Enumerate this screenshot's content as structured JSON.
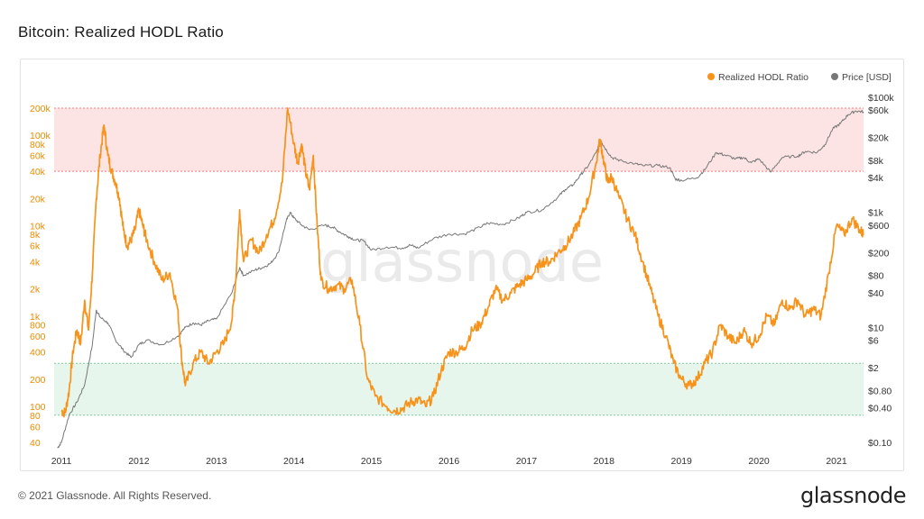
{
  "page": {
    "title": "Bitcoin: Realized HODL Ratio",
    "copyright": "© 2021 Glassnode. All Rights Reserved.",
    "logo_text": "glassnode",
    "watermark": "glassnode"
  },
  "colors": {
    "ratio": "#f7931a",
    "price": "#777777",
    "upper_band": "#fde4e4",
    "lower_band": "#e6f6ec",
    "left_axis_text": "#f08a00",
    "right_axis_text": "#333333"
  },
  "chart_data": {
    "type": "line",
    "title": "Bitcoin: Realized HODL Ratio",
    "legend_position": "top-right",
    "grid": false,
    "x_ticks": [
      "2011",
      "2012",
      "2013",
      "2014",
      "2015",
      "2016",
      "2017",
      "2018",
      "2019",
      "2020",
      "2021"
    ],
    "y_left": {
      "scale": "log",
      "range": [
        40,
        200000
      ],
      "ticks": [
        {
          "v": 40,
          "label": "40"
        },
        {
          "v": 60,
          "label": "60"
        },
        {
          "v": 80,
          "label": "80"
        },
        {
          "v": 100,
          "label": "100"
        },
        {
          "v": 200,
          "label": "200"
        },
        {
          "v": 400,
          "label": "400"
        },
        {
          "v": 600,
          "label": "600"
        },
        {
          "v": 800,
          "label": "800"
        },
        {
          "v": 1000,
          "label": "1k"
        },
        {
          "v": 2000,
          "label": "2k"
        },
        {
          "v": 4000,
          "label": "4k"
        },
        {
          "v": 6000,
          "label": "6k"
        },
        {
          "v": 8000,
          "label": "8k"
        },
        {
          "v": 10000,
          "label": "10k"
        },
        {
          "v": 20000,
          "label": "20k"
        },
        {
          "v": 40000,
          "label": "40k"
        },
        {
          "v": 60000,
          "label": "60k"
        },
        {
          "v": 80000,
          "label": "80k"
        },
        {
          "v": 100000,
          "label": "100k"
        },
        {
          "v": 200000,
          "label": "200k"
        }
      ]
    },
    "y_right": {
      "scale": "log",
      "range": [
        0.1,
        100000
      ],
      "ticks": [
        {
          "v": 0.1,
          "label": "$0.10"
        },
        {
          "v": 0.4,
          "label": "$0.40"
        },
        {
          "v": 0.8,
          "label": "$0.80"
        },
        {
          "v": 2,
          "label": "$2"
        },
        {
          "v": 6,
          "label": "$6"
        },
        {
          "v": 10,
          "label": "$10"
        },
        {
          "v": 40,
          "label": "$40"
        },
        {
          "v": 80,
          "label": "$80"
        },
        {
          "v": 200,
          "label": "$200"
        },
        {
          "v": 600,
          "label": "$600"
        },
        {
          "v": 1000,
          "label": "$1k"
        },
        {
          "v": 4000,
          "label": "$4k"
        },
        {
          "v": 8000,
          "label": "$8k"
        },
        {
          "v": 20000,
          "label": "$20k"
        },
        {
          "v": 60000,
          "label": "$60k"
        },
        {
          "v": 100000,
          "label": "$100k"
        }
      ]
    },
    "bands": [
      {
        "name": "upper",
        "from": 40000,
        "to": 200000
      },
      {
        "name": "lower",
        "from": 80,
        "to": 300
      }
    ],
    "series": [
      {
        "name": "Realized HODL Ratio",
        "axis": "left",
        "points": [
          [
            2011.0,
            90
          ],
          [
            2011.05,
            85
          ],
          [
            2011.1,
            150
          ],
          [
            2011.15,
            400
          ],
          [
            2011.2,
            700
          ],
          [
            2011.25,
            500
          ],
          [
            2011.3,
            1500
          ],
          [
            2011.35,
            700
          ],
          [
            2011.4,
            3000
          ],
          [
            2011.45,
            20000
          ],
          [
            2011.5,
            60000
          ],
          [
            2011.55,
            130000
          ],
          [
            2011.6,
            60000
          ],
          [
            2011.65,
            40000
          ],
          [
            2011.7,
            30000
          ],
          [
            2011.75,
            20000
          ],
          [
            2011.8,
            9000
          ],
          [
            2011.85,
            6000
          ],
          [
            2011.9,
            7000
          ],
          [
            2011.95,
            9000
          ],
          [
            2012.0,
            15000
          ],
          [
            2012.05,
            10000
          ],
          [
            2012.1,
            7000
          ],
          [
            2012.2,
            4000
          ],
          [
            2012.3,
            2500
          ],
          [
            2012.4,
            3000
          ],
          [
            2012.5,
            1200
          ],
          [
            2012.55,
            350
          ],
          [
            2012.6,
            170
          ],
          [
            2012.7,
            300
          ],
          [
            2012.8,
            400
          ],
          [
            2012.9,
            300
          ],
          [
            2013.0,
            400
          ],
          [
            2013.1,
            500
          ],
          [
            2013.2,
            900
          ],
          [
            2013.25,
            2500
          ],
          [
            2013.3,
            15000
          ],
          [
            2013.35,
            4000
          ],
          [
            2013.45,
            7000
          ],
          [
            2013.55,
            5000
          ],
          [
            2013.65,
            8000
          ],
          [
            2013.75,
            12000
          ],
          [
            2013.85,
            30000
          ],
          [
            2013.92,
            200000
          ],
          [
            2014.0,
            80000
          ],
          [
            2014.05,
            50000
          ],
          [
            2014.1,
            80000
          ],
          [
            2014.15,
            40000
          ],
          [
            2014.2,
            25000
          ],
          [
            2014.25,
            60000
          ],
          [
            2014.3,
            10000
          ],
          [
            2014.35,
            2500
          ],
          [
            2014.45,
            2000
          ],
          [
            2014.55,
            2200
          ],
          [
            2014.65,
            2000
          ],
          [
            2014.75,
            2500
          ],
          [
            2014.85,
            800
          ],
          [
            2014.95,
            200
          ],
          [
            2015.05,
            130
          ],
          [
            2015.2,
            100
          ],
          [
            2015.3,
            90
          ],
          [
            2015.4,
            95
          ],
          [
            2015.5,
            110
          ],
          [
            2015.6,
            120
          ],
          [
            2015.7,
            100
          ],
          [
            2015.8,
            130
          ],
          [
            2015.9,
            250
          ],
          [
            2016.0,
            400
          ],
          [
            2016.1,
            400
          ],
          [
            2016.2,
            450
          ],
          [
            2016.3,
            700
          ],
          [
            2016.4,
            800
          ],
          [
            2016.5,
            1200
          ],
          [
            2016.6,
            2000
          ],
          [
            2016.7,
            1500
          ],
          [
            2016.8,
            1800
          ],
          [
            2016.9,
            2200
          ],
          [
            2017.0,
            2500
          ],
          [
            2017.1,
            3000
          ],
          [
            2017.2,
            4000
          ],
          [
            2017.3,
            4000
          ],
          [
            2017.4,
            5000
          ],
          [
            2017.5,
            6000
          ],
          [
            2017.6,
            8000
          ],
          [
            2017.7,
            12000
          ],
          [
            2017.8,
            20000
          ],
          [
            2017.9,
            50000
          ],
          [
            2017.95,
            90000
          ],
          [
            2018.0,
            50000
          ],
          [
            2018.05,
            30000
          ],
          [
            2018.1,
            35000
          ],
          [
            2018.2,
            20000
          ],
          [
            2018.3,
            12000
          ],
          [
            2018.4,
            8000
          ],
          [
            2018.5,
            4000
          ],
          [
            2018.6,
            2000
          ],
          [
            2018.7,
            1000
          ],
          [
            2018.8,
            600
          ],
          [
            2018.9,
            300
          ],
          [
            2019.0,
            200
          ],
          [
            2019.1,
            170
          ],
          [
            2019.2,
            200
          ],
          [
            2019.3,
            300
          ],
          [
            2019.4,
            400
          ],
          [
            2019.5,
            800
          ],
          [
            2019.6,
            600
          ],
          [
            2019.7,
            500
          ],
          [
            2019.8,
            700
          ],
          [
            2019.9,
            500
          ],
          [
            2020.0,
            600
          ],
          [
            2020.1,
            1000
          ],
          [
            2020.2,
            800
          ],
          [
            2020.3,
            1500
          ],
          [
            2020.4,
            1200
          ],
          [
            2020.5,
            1500
          ],
          [
            2020.6,
            1000
          ],
          [
            2020.7,
            1200
          ],
          [
            2020.8,
            1000
          ],
          [
            2020.9,
            3000
          ],
          [
            2021.0,
            10000
          ],
          [
            2021.1,
            8000
          ],
          [
            2021.2,
            12000
          ],
          [
            2021.3,
            9000
          ],
          [
            2021.35,
            8000
          ]
        ]
      },
      {
        "name": "Price [USD]",
        "axis": "right",
        "points": [
          [
            2010.95,
            0.08
          ],
          [
            2011.0,
            0.1
          ],
          [
            2011.1,
            0.3
          ],
          [
            2011.2,
            0.5
          ],
          [
            2011.3,
            1
          ],
          [
            2011.4,
            5
          ],
          [
            2011.45,
            20
          ],
          [
            2011.5,
            15
          ],
          [
            2011.6,
            12
          ],
          [
            2011.7,
            6
          ],
          [
            2011.8,
            4
          ],
          [
            2011.9,
            3
          ],
          [
            2012.0,
            5
          ],
          [
            2012.1,
            6
          ],
          [
            2012.3,
            5
          ],
          [
            2012.5,
            7
          ],
          [
            2012.6,
            10
          ],
          [
            2012.7,
            12
          ],
          [
            2012.8,
            11
          ],
          [
            2012.9,
            13
          ],
          [
            2013.0,
            14
          ],
          [
            2013.2,
            40
          ],
          [
            2013.3,
            110
          ],
          [
            2013.35,
            80
          ],
          [
            2013.5,
            100
          ],
          [
            2013.6,
            110
          ],
          [
            2013.7,
            130
          ],
          [
            2013.8,
            200
          ],
          [
            2013.9,
            700
          ],
          [
            2013.95,
            1000
          ],
          [
            2014.0,
            800
          ],
          [
            2014.1,
            600
          ],
          [
            2014.2,
            500
          ],
          [
            2014.4,
            600
          ],
          [
            2014.5,
            550
          ],
          [
            2014.6,
            450
          ],
          [
            2014.7,
            380
          ],
          [
            2014.8,
            330
          ],
          [
            2014.9,
            320
          ],
          [
            2015.0,
            220
          ],
          [
            2015.2,
            250
          ],
          [
            2015.4,
            240
          ],
          [
            2015.5,
            270
          ],
          [
            2015.6,
            240
          ],
          [
            2015.8,
            350
          ],
          [
            2016.0,
            420
          ],
          [
            2016.2,
            420
          ],
          [
            2016.4,
            550
          ],
          [
            2016.5,
            650
          ],
          [
            2016.7,
            620
          ],
          [
            2016.9,
            800
          ],
          [
            2017.0,
            1000
          ],
          [
            2017.2,
            1100
          ],
          [
            2017.4,
            1800
          ],
          [
            2017.5,
            2500
          ],
          [
            2017.6,
            3000
          ],
          [
            2017.7,
            4500
          ],
          [
            2017.8,
            6500
          ],
          [
            2017.9,
            11000
          ],
          [
            2017.96,
            18000
          ],
          [
            2018.0,
            14000
          ],
          [
            2018.1,
            9000
          ],
          [
            2018.2,
            8000
          ],
          [
            2018.4,
            7000
          ],
          [
            2018.5,
            6500
          ],
          [
            2018.7,
            6500
          ],
          [
            2018.85,
            6000
          ],
          [
            2018.92,
            3800
          ],
          [
            2019.0,
            3600
          ],
          [
            2019.2,
            4000
          ],
          [
            2019.3,
            5500
          ],
          [
            2019.45,
            11000
          ],
          [
            2019.55,
            10000
          ],
          [
            2019.7,
            8500
          ],
          [
            2019.8,
            9000
          ],
          [
            2019.9,
            7300
          ],
          [
            2020.0,
            8500
          ],
          [
            2020.15,
            5000
          ],
          [
            2020.3,
            9000
          ],
          [
            2020.5,
            9500
          ],
          [
            2020.6,
            11500
          ],
          [
            2020.75,
            11000
          ],
          [
            2020.85,
            15000
          ],
          [
            2020.95,
            28000
          ],
          [
            2021.05,
            35000
          ],
          [
            2021.15,
            50000
          ],
          [
            2021.25,
            58000
          ],
          [
            2021.35,
            56000
          ]
        ]
      }
    ],
    "legend": [
      "Realized HODL Ratio",
      "Price [USD]"
    ]
  }
}
